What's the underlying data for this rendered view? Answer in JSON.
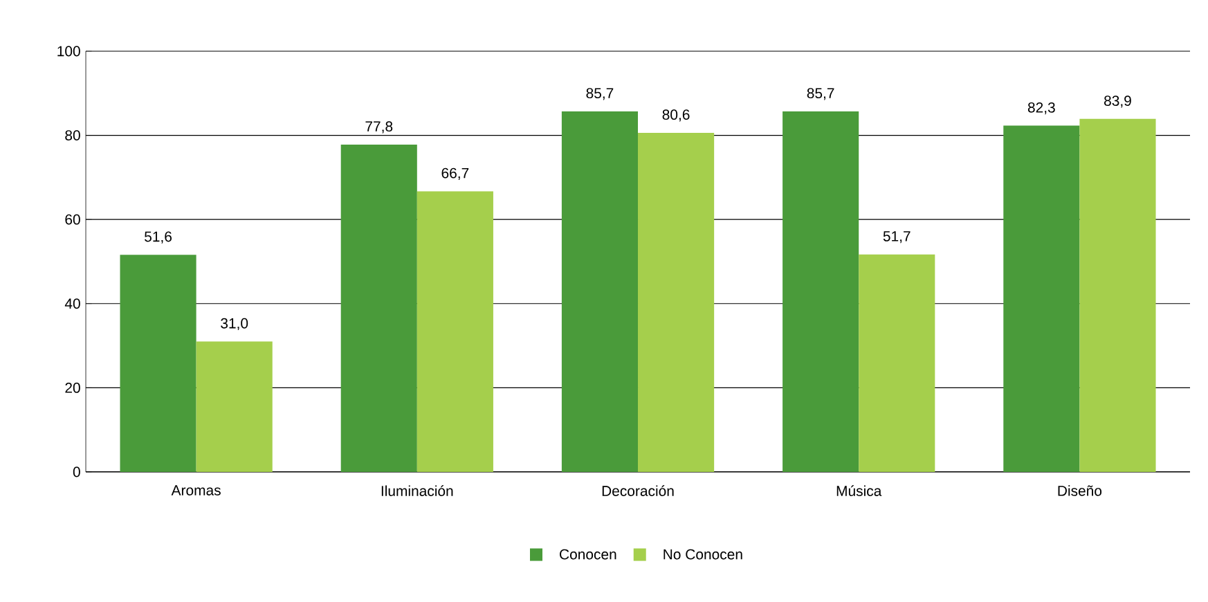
{
  "chart_data": {
    "type": "bar",
    "categories": [
      "Aromas",
      "Iluminación",
      "Decoración",
      "Música",
      "Diseño"
    ],
    "series": [
      {
        "name": "Conocen",
        "color": "#4a9b3a",
        "values": [
          51.6,
          77.8,
          85.7,
          85.7,
          82.3
        ],
        "value_labels": [
          "51,6",
          "77,8",
          "85,7",
          "85,7",
          "82,3"
        ]
      },
      {
        "name": "No Conocen",
        "color": "#a5cf4c",
        "values": [
          31.0,
          66.7,
          80.6,
          51.7,
          83.9
        ],
        "value_labels": [
          "31,0",
          "66,7",
          "80,6",
          "51,7",
          "83,9"
        ]
      }
    ],
    "ylim": [
      0,
      100
    ],
    "yticks": [
      0,
      20,
      40,
      60,
      80,
      100
    ],
    "grid": "y",
    "legend": "bottom"
  }
}
